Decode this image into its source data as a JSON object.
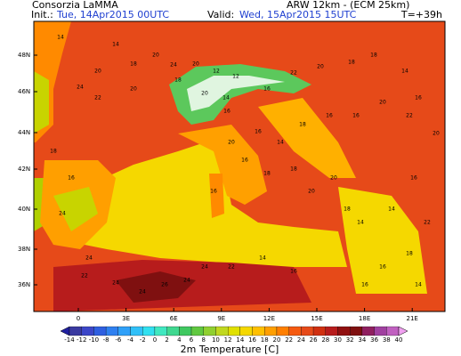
{
  "header": {
    "title": "Consorzia LaMMA",
    "init_label": "Init.:",
    "init_value": "Tue, 14Apr2015 00UTC",
    "model": "ARW 12km - (ECM 25km)",
    "valid_label": "Valid:",
    "valid_value": "Wed, 15Apr2015 15UTC",
    "step": "T=+39h"
  },
  "map": {
    "lat_labels": [
      "48N",
      "46N",
      "44N",
      "42N",
      "40N",
      "38N",
      "36N"
    ],
    "lon_labels": [
      "0",
      "3E",
      "6E",
      "9E",
      "12E",
      "15E",
      "18E",
      "21E"
    ],
    "stations": [
      14,
      14,
      20,
      18,
      20,
      24,
      22,
      20,
      18,
      24,
      20,
      12,
      12,
      14,
      20,
      16,
      16,
      22,
      20,
      18,
      18,
      14,
      16,
      20,
      22,
      20,
      16,
      16,
      18,
      14,
      16,
      20,
      16,
      18,
      18,
      20,
      20,
      18,
      14,
      14,
      16,
      22,
      18,
      16,
      14,
      16,
      16,
      14,
      22,
      24,
      24,
      26,
      24,
      24,
      22,
      24,
      24,
      16,
      18,
      16
    ]
  },
  "colorbar": {
    "labels": [
      "-14",
      "-12",
      "-10",
      "-8",
      "-6",
      "-4",
      "-2",
      "0",
      "2",
      "4",
      "6",
      "8",
      "10",
      "12",
      "14",
      "16",
      "18",
      "20",
      "22",
      "24",
      "26",
      "28",
      "30",
      "32",
      "34",
      "36",
      "38",
      "40"
    ],
    "title": "2m Temperature [C]"
  }
}
